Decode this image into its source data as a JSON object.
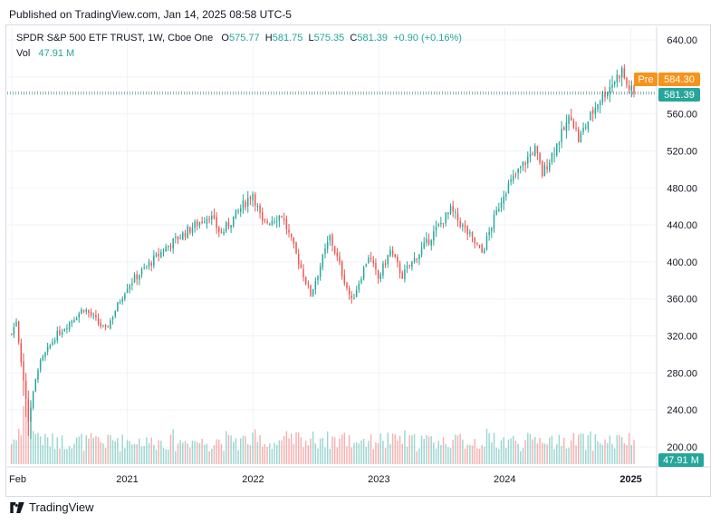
{
  "header": {
    "published": "Published on TradingView.com, Jan 14, 2025 08:58 UTC-5"
  },
  "legend": {
    "symbol": "SPDR S&P 500 ETF TRUST, 1W, Cboe One",
    "o_label": "O",
    "o_value": "575.77",
    "h_label": "H",
    "h_value": "581.75",
    "l_label": "L",
    "l_value": "575.35",
    "c_label": "C",
    "c_value": "581.39",
    "change": "+0.90 (+0.16%)",
    "vol_label": "Vol",
    "vol_value": "47.91 M"
  },
  "badges": {
    "pre_label": "Pre",
    "pre_value": "584.30",
    "last_value": "581.39",
    "vol_value": "47.91 M"
  },
  "footer": {
    "brand": "TradingView"
  },
  "colors": {
    "up": "#26a69a",
    "down": "#ef5350",
    "pre": "#f7931a",
    "grid": "#f0f3fa"
  },
  "chart_data": {
    "type": "candlestick",
    "title": "SPDR S&P 500 ETF TRUST, 1W, Cboe One",
    "ylim": [
      180,
      650
    ],
    "y_ticks": [
      "640.00",
      "600.00",
      "560.00",
      "520.00",
      "480.00",
      "440.00",
      "400.00",
      "360.00",
      "320.00",
      "280.00",
      "240.00",
      "200.00"
    ],
    "x_ticks": [
      "Feb",
      "2021",
      "2022",
      "2023",
      "2024",
      "2025"
    ],
    "last_price": 581.39,
    "pre_price": 584.3,
    "series_close_anchors": [
      {
        "date": "2020-01-31",
        "close": 322
      },
      {
        "date": "2020-02-14",
        "close": 337
      },
      {
        "date": "2020-03-20",
        "close": 229
      },
      {
        "date": "2020-04-17",
        "close": 286
      },
      {
        "date": "2020-06-05",
        "close": 319
      },
      {
        "date": "2020-08-28",
        "close": 350
      },
      {
        "date": "2020-10-30",
        "close": 326
      },
      {
        "date": "2020-12-31",
        "close": 374
      },
      {
        "date": "2021-04-30",
        "close": 418
      },
      {
        "date": "2021-08-27",
        "close": 451
      },
      {
        "date": "2021-09-30",
        "close": 430
      },
      {
        "date": "2021-12-31",
        "close": 475
      },
      {
        "date": "2022-01-28",
        "close": 441
      },
      {
        "date": "2022-03-25",
        "close": 451
      },
      {
        "date": "2022-06-17",
        "close": 365
      },
      {
        "date": "2022-08-12",
        "close": 427
      },
      {
        "date": "2022-10-14",
        "close": 357
      },
      {
        "date": "2022-12-02",
        "close": 407
      },
      {
        "date": "2022-12-30",
        "close": 382
      },
      {
        "date": "2023-02-03",
        "close": 412
      },
      {
        "date": "2023-03-10",
        "close": 385
      },
      {
        "date": "2023-07-28",
        "close": 456
      },
      {
        "date": "2023-10-27",
        "close": 410
      },
      {
        "date": "2023-12-29",
        "close": 475
      },
      {
        "date": "2024-03-28",
        "close": 523
      },
      {
        "date": "2024-04-19",
        "close": 495
      },
      {
        "date": "2024-07-12",
        "close": 559
      },
      {
        "date": "2024-08-02",
        "close": 532
      },
      {
        "date": "2024-09-27",
        "close": 573
      },
      {
        "date": "2024-12-06",
        "close": 607
      },
      {
        "date": "2024-12-20",
        "close": 591
      },
      {
        "date": "2025-01-10",
        "close": 581
      }
    ]
  }
}
